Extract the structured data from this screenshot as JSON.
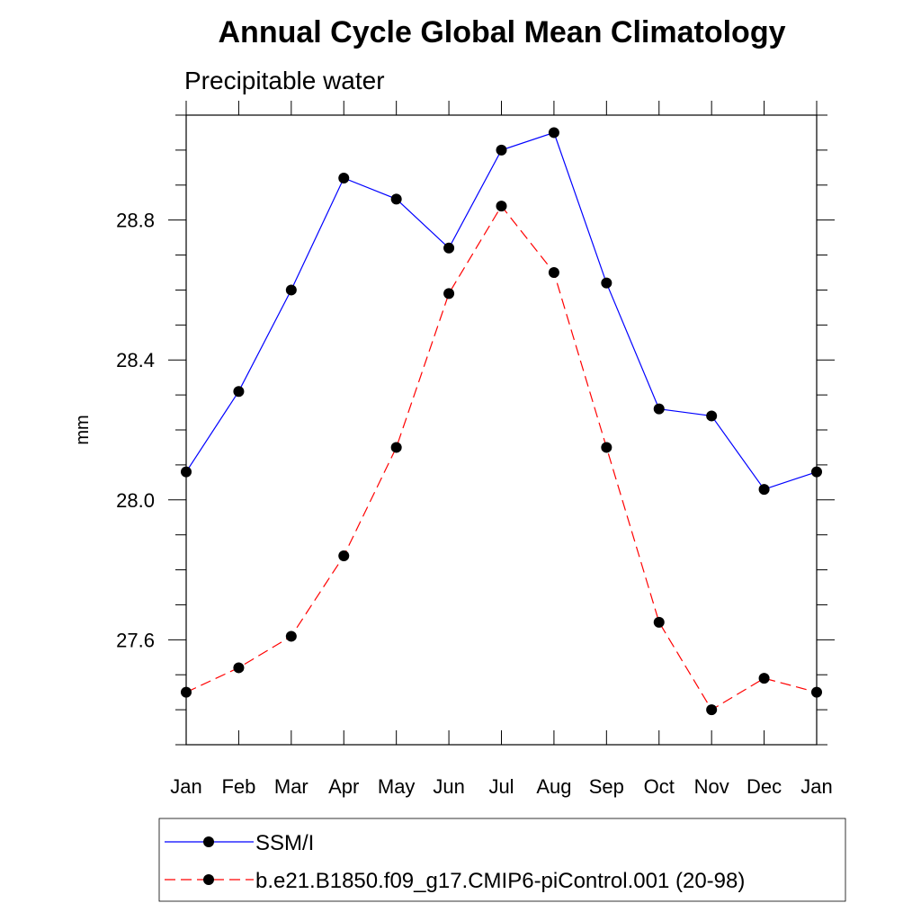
{
  "chart_data": {
    "type": "line",
    "title": "Annual Cycle Global Mean Climatology",
    "subtitle": "Precipitable water",
    "xlabel": "",
    "ylabel": "mm",
    "categories": [
      "Jan",
      "Feb",
      "Mar",
      "Apr",
      "May",
      "Jun",
      "Jul",
      "Aug",
      "Sep",
      "Oct",
      "Nov",
      "Dec",
      "Jan"
    ],
    "ylim": [
      27.3,
      29.1
    ],
    "yticks": [
      "28.8",
      "28.4",
      "28.0",
      "27.6"
    ],
    "grid": false,
    "legend_position": "bottom",
    "series": [
      {
        "name": "SSM/I",
        "color": "#0000ff",
        "dash": "solid",
        "values": [
          28.08,
          28.31,
          28.6,
          28.92,
          28.86,
          28.72,
          29.0,
          29.05,
          28.62,
          28.26,
          28.24,
          28.03,
          28.08
        ]
      },
      {
        "name": "b.e21.B1850.f09_g17.CMIP6-piControl.001 (20-98)",
        "color": "#ff0000",
        "dash": "dashed",
        "values": [
          27.45,
          27.52,
          27.61,
          27.84,
          28.15,
          28.59,
          28.84,
          28.65,
          28.15,
          27.65,
          27.4,
          27.49,
          27.45
        ]
      }
    ]
  }
}
